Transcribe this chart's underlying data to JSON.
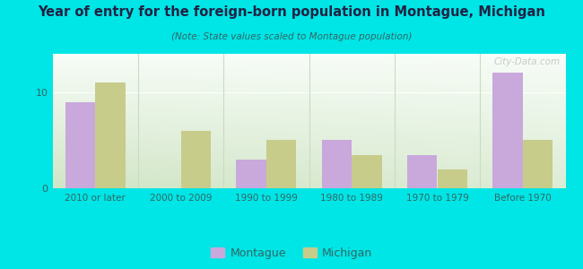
{
  "title": "Year of entry for the foreign-born population in Montague, Michigan",
  "subtitle": "(Note: State values scaled to Montague population)",
  "categories": [
    "2010 or later",
    "2000 to 2009",
    "1990 to 1999",
    "1980 to 1989",
    "1970 to 1979",
    "Before 1970"
  ],
  "montague_values": [
    9,
    0,
    3,
    5,
    3.5,
    12
  ],
  "michigan_values": [
    11,
    6,
    5,
    3.5,
    2,
    5
  ],
  "montague_color": "#c9a8dc",
  "michigan_color": "#c8cc8a",
  "bg_outer": "#00e5e5",
  "ylim": [
    0,
    14
  ],
  "yticks": [
    0,
    10
  ],
  "bar_width": 0.35,
  "legend_montague": "Montague",
  "legend_michigan": "Michigan",
  "watermark": "City-Data.com",
  "title_color": "#222244",
  "subtitle_color": "#336666",
  "tick_color": "#336666",
  "separator_color": "#c8ddc0"
}
